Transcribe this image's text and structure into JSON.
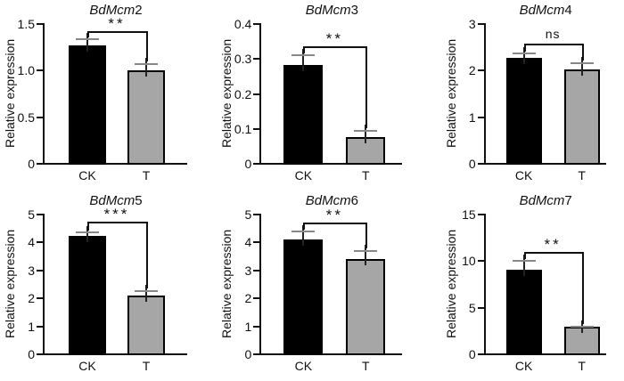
{
  "figure": {
    "description": "Relative expression of BdMcm genes under control (CK) and treatment (T)",
    "ylabel": "Relative expression",
    "x_categories": [
      "CK",
      "T"
    ],
    "colors": {
      "ck_bar": "#000000",
      "t_bar": "#a6a6a6",
      "axis": "#111111",
      "error_cap": "#878787",
      "background": "#ffffff"
    }
  },
  "chart_data": [
    {
      "type": "bar",
      "title": "BdMcm2",
      "title_gene": "BdMcm",
      "title_num": "2",
      "ylabel": "Relative expression",
      "categories": [
        "CK",
        "T"
      ],
      "values": [
        1.26,
        0.99
      ],
      "errors": [
        0.08,
        0.08
      ],
      "ylim": [
        0,
        1.5
      ],
      "ytick_values": [
        0,
        0.5,
        1.0,
        1.5
      ],
      "ytick_labels": [
        "0",
        "0.5",
        "1.0",
        "1.5"
      ],
      "significance": "**",
      "bracket_y": 1.41
    },
    {
      "type": "bar",
      "title": "BdMcm3",
      "title_gene": "BdMcm",
      "title_num": "3",
      "ylabel": "Relative expression",
      "categories": [
        "CK",
        "T"
      ],
      "values": [
        0.28,
        0.073
      ],
      "errors": [
        0.03,
        0.022
      ],
      "ylim": [
        0,
        0.4
      ],
      "ytick_values": [
        0,
        0.1,
        0.2,
        0.3,
        0.4
      ],
      "ytick_labels": [
        "0",
        "0.1",
        "0.2",
        "0.3",
        "0.4"
      ],
      "significance": "**",
      "bracket_y": 0.335
    },
    {
      "type": "bar",
      "title": "BdMcm4",
      "title_gene": "BdMcm",
      "title_num": "4",
      "ylabel": "Relative expression",
      "categories": [
        "CK",
        "T"
      ],
      "values": [
        2.25,
        2.0
      ],
      "errors": [
        0.12,
        0.16
      ],
      "ylim": [
        0,
        3
      ],
      "ytick_values": [
        0,
        1,
        2,
        3
      ],
      "ytick_labels": [
        "0",
        "1",
        "2",
        "3"
      ],
      "significance": "ns",
      "bracket_y": 2.57
    },
    {
      "type": "bar",
      "title": "BdMcm5",
      "title_gene": "BdMcm",
      "title_num": "5",
      "ylabel": "Relative expression",
      "categories": [
        "CK",
        "T"
      ],
      "values": [
        4.2,
        2.07
      ],
      "errors": [
        0.17,
        0.2
      ],
      "ylim": [
        0,
        5
      ],
      "ytick_values": [
        0,
        1,
        2,
        3,
        4,
        5
      ],
      "ytick_labels": [
        "0",
        "1",
        "2",
        "3",
        "4",
        "5"
      ],
      "significance": "***",
      "bracket_y": 4.7
    },
    {
      "type": "bar",
      "title": "BdMcm6",
      "title_gene": "BdMcm",
      "title_num": "6",
      "ylabel": "Relative expression",
      "categories": [
        "CK",
        "T"
      ],
      "values": [
        4.08,
        3.36
      ],
      "errors": [
        0.3,
        0.34
      ],
      "ylim": [
        0,
        5
      ],
      "ytick_values": [
        0,
        1,
        2,
        3,
        4,
        5
      ],
      "ytick_labels": [
        "0",
        "1",
        "2",
        "3",
        "4",
        "5"
      ],
      "significance": "**",
      "bracket_y": 4.68
    },
    {
      "type": "bar",
      "title": "BdMcm7",
      "title_gene": "BdMcm",
      "title_num": "7",
      "ylabel": "Relative expression",
      "categories": [
        "CK",
        "T"
      ],
      "values": [
        9.0,
        2.85
      ],
      "errors": [
        1.0,
        0.15
      ],
      "ylim": [
        0,
        15
      ],
      "ytick_values": [
        0,
        5,
        10,
        15
      ],
      "ytick_labels": [
        "0",
        "5",
        "10",
        "15"
      ],
      "significance": "**",
      "bracket_y": 10.9
    }
  ]
}
